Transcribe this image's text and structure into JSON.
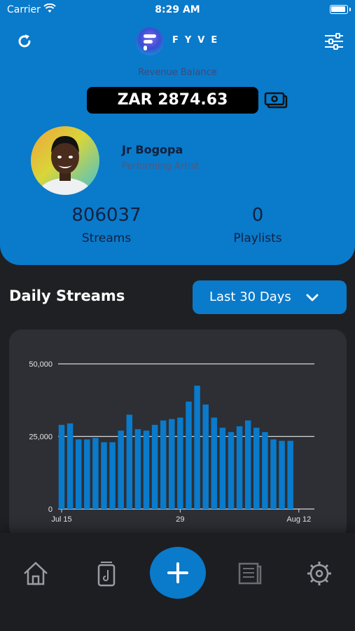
{
  "status_bar": {
    "carrier": "Carrier",
    "time": "8:29 AM"
  },
  "header": {
    "logo_text": "FYVE",
    "revenue_label": "Revenue Balance",
    "balance": "ZAR 2874.63"
  },
  "profile": {
    "name": "Jr Bogopa",
    "role": "Performing Artist"
  },
  "stats": [
    {
      "value": "806037",
      "label": "Streams"
    },
    {
      "value": "0",
      "label": "Playlists"
    }
  ],
  "section": {
    "title": "Daily Streams",
    "range_label": "Last 30 Days"
  },
  "colors": {
    "accent": "#0a7acb",
    "background": "#1f2024",
    "card": "#2d2f34"
  },
  "chart_data": {
    "type": "bar",
    "x_tick_labels": [
      "Jul 15",
      "29",
      "Aug 12"
    ],
    "y_tick_labels": [
      "50,000",
      "25,000",
      "0"
    ],
    "ylim": [
      0,
      50000
    ],
    "values": [
      29000,
      29500,
      24000,
      24000,
      24500,
      23000,
      23000,
      27000,
      32500,
      27500,
      27000,
      29000,
      30500,
      31000,
      31500,
      37000,
      42500,
      36000,
      31500,
      28000,
      26500,
      28500,
      30500,
      28000,
      26500,
      24000,
      23500,
      23500
    ],
    "color": "#0a7acb",
    "grid": true,
    "legend": "none"
  },
  "tabbar": {
    "icons": [
      "home-icon",
      "music-file-icon",
      "plus-icon",
      "news-icon",
      "gear-icon"
    ]
  }
}
